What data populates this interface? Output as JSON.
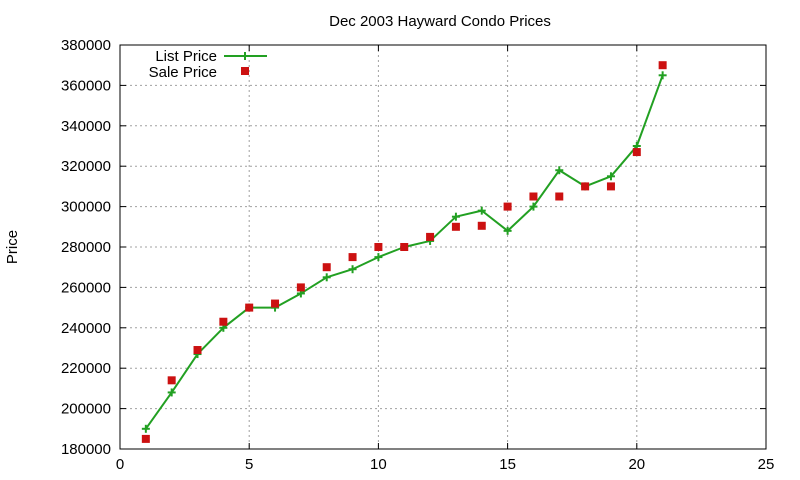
{
  "chart_data": {
    "type": "line",
    "title": "Dec 2003 Hayward Condo Prices",
    "xlabel": "",
    "ylabel": "Price",
    "xlim": [
      0,
      25
    ],
    "ylim": [
      180000,
      380000
    ],
    "xticks": [
      0,
      5,
      10,
      15,
      20,
      25
    ],
    "yticks": [
      180000,
      200000,
      220000,
      240000,
      260000,
      280000,
      300000,
      320000,
      340000,
      360000,
      380000
    ],
    "grid": true,
    "legend_position": "top-left",
    "series": [
      {
        "name": "List Price",
        "style": "line-with-plus-markers",
        "color": "#22a022",
        "x": [
          1,
          2,
          3,
          4,
          5,
          6,
          7,
          8,
          9,
          10,
          11,
          12,
          13,
          14,
          15,
          16,
          17,
          18,
          19,
          20,
          21
        ],
        "y": [
          190000,
          208000,
          227000,
          240000,
          250000,
          250000,
          257000,
          265000,
          269000,
          275000,
          280000,
          283000,
          295000,
          298000,
          288000,
          300000,
          318000,
          310000,
          315000,
          330000,
          365000
        ]
      },
      {
        "name": "Sale Price",
        "style": "square-markers",
        "color": "#cc1111",
        "x": [
          1,
          2,
          3,
          4,
          5,
          6,
          7,
          8,
          9,
          10,
          11,
          12,
          13,
          14,
          15,
          16,
          17,
          18,
          19,
          20,
          21
        ],
        "y": [
          185000,
          214000,
          229000,
          243000,
          250000,
          252000,
          260000,
          270000,
          275000,
          280000,
          280000,
          285000,
          290000,
          290500,
          300000,
          305000,
          305000,
          310000,
          310000,
          327000,
          370000
        ]
      }
    ]
  }
}
